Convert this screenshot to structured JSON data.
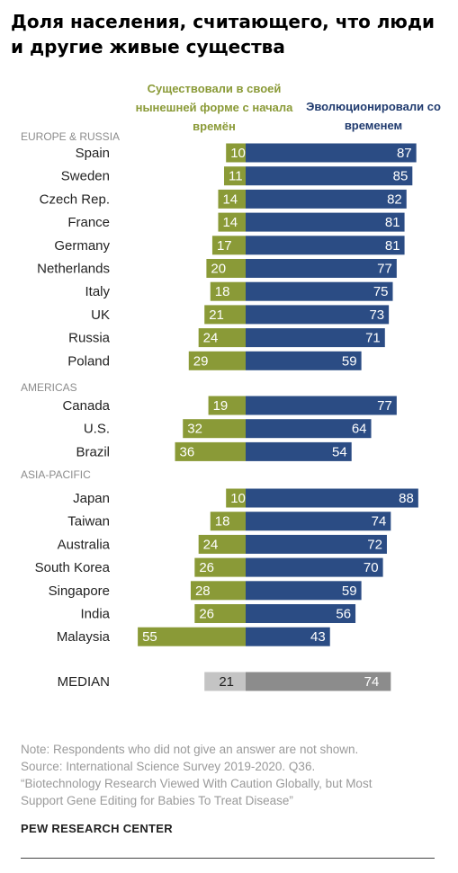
{
  "title": "Доля населения, считающего, что люди и другие живые существа",
  "legend": {
    "existed": "Существовали в своей нынешней форме с начала времён",
    "evolved": "Эволюционировали со временем"
  },
  "colors": {
    "existed": "#8a9a37",
    "evolved": "#2b4c84",
    "median_existed": "#c4c4c4",
    "median_evolved": "#8c8c8c"
  },
  "chart_data": {
    "type": "bar",
    "orientation": "horizontal-diverging",
    "series": [
      {
        "name": "Существовали в своей нынешней форме с начала времён",
        "key": "existed"
      },
      {
        "name": "Эволюционировали со временем",
        "key": "evolved"
      }
    ],
    "groups": [
      {
        "label": "EUROPE & RUSSIA",
        "rows": [
          {
            "country": "Spain",
            "existed": 10,
            "evolved": 87
          },
          {
            "country": "Sweden",
            "existed": 11,
            "evolved": 85
          },
          {
            "country": "Czech Rep.",
            "existed": 14,
            "evolved": 82
          },
          {
            "country": "France",
            "existed": 14,
            "evolved": 81
          },
          {
            "country": "Germany",
            "existed": 17,
            "evolved": 81
          },
          {
            "country": "Netherlands",
            "existed": 20,
            "evolved": 77
          },
          {
            "country": "Italy",
            "existed": 18,
            "evolved": 75
          },
          {
            "country": "UK",
            "existed": 21,
            "evolved": 73
          },
          {
            "country": "Russia",
            "existed": 24,
            "evolved": 71
          },
          {
            "country": "Poland",
            "existed": 29,
            "evolved": 59
          }
        ]
      },
      {
        "label": "AMERICAS",
        "rows": [
          {
            "country": "Canada",
            "existed": 19,
            "evolved": 77
          },
          {
            "country": "U.S.",
            "existed": 32,
            "evolved": 64
          },
          {
            "country": "Brazil",
            "existed": 36,
            "evolved": 54
          }
        ]
      },
      {
        "label": "ASIA-PACIFIC",
        "rows": [
          {
            "country": "Japan",
            "existed": 10,
            "evolved": 88
          },
          {
            "country": "Taiwan",
            "existed": 18,
            "evolved": 74
          },
          {
            "country": "Australia",
            "existed": 24,
            "evolved": 72
          },
          {
            "country": "South Korea",
            "existed": 26,
            "evolved": 70
          },
          {
            "country": "Singapore",
            "existed": 28,
            "evolved": 59
          },
          {
            "country": "India",
            "existed": 26,
            "evolved": 56
          },
          {
            "country": "Malaysia",
            "existed": 55,
            "evolved": 43
          }
        ]
      }
    ],
    "median": {
      "label": "MEDIAN",
      "existed": 21,
      "evolved": 74
    }
  },
  "note": {
    "line1": "Note: Respondents who did not give an answer are not shown.",
    "line2": "Source: International Science Survey 2019-2020. Q36.",
    "line3": "“Biotechnology Research Viewed With Caution Globally, but Most",
    "line4": "Support Gene Editing for Babies To Treat Disease”"
  },
  "source_org": "PEW RESEARCH CENTER"
}
